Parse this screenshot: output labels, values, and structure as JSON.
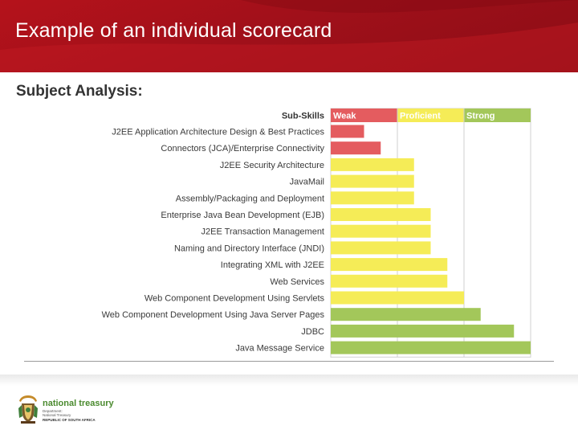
{
  "slide": {
    "title": "Example of an individual scorecard"
  },
  "chart_data": {
    "type": "bar",
    "orientation": "horizontal",
    "title": "Subject Analysis:",
    "category_header": "Sub-Skills",
    "levels": [
      {
        "label": "Weak",
        "color": "#e45c5f"
      },
      {
        "label": "Proficient",
        "color": "#f5ec57"
      },
      {
        "label": "Strong",
        "color": "#a3c75a"
      }
    ],
    "xlim": [
      0,
      12
    ],
    "categories": [
      "J2EE Application Architecture Design & Best Practices",
      "Connectors (JCA)/Enterprise Connectivity",
      "J2EE Security Architecture",
      "JavaMail",
      "Assembly/Packaging and Deployment",
      "Enterprise Java Bean Development (EJB)",
      "J2EE Transaction Management",
      "Naming and Directory Interface (JNDI)",
      "Integrating XML with J2EE",
      "Web Services",
      "Web Component Development Using Servlets",
      "Web Component Development Using Java Server Pages",
      "JDBC",
      "Java Message Service"
    ],
    "values": [
      2,
      3,
      5,
      5,
      5,
      6,
      6,
      6,
      7,
      7,
      8,
      9,
      11,
      12
    ],
    "bar_levels": [
      "Weak",
      "Weak",
      "Proficient",
      "Proficient",
      "Proficient",
      "Proficient",
      "Proficient",
      "Proficient",
      "Proficient",
      "Proficient",
      "Proficient",
      "Strong",
      "Strong",
      "Strong"
    ]
  },
  "footer": {
    "logo_name": "national treasury",
    "logo_line1": "Department:",
    "logo_line2": "National Treasury",
    "logo_line3": "REPUBLIC OF SOUTH AFRICA",
    "emblem_icon": "coat-of-arms-icon"
  }
}
